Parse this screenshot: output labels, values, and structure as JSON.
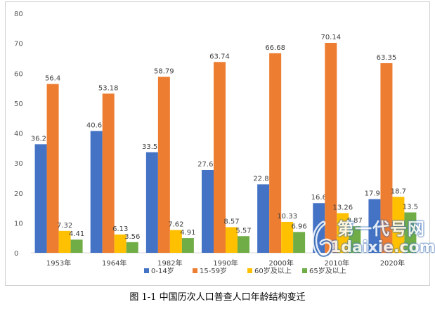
{
  "caption": "图 1-1 中国历次人口普查人口年龄结构变迁",
  "watermark": {
    "line1": "第一代号网",
    "line2": "1daixie.com"
  },
  "chart_data": {
    "type": "bar",
    "categories": [
      "1953年",
      "1964年",
      "1982年",
      "1990年",
      "2000年",
      "2010年",
      "2020年"
    ],
    "series": [
      {
        "name": "0-14岁",
        "color": "#4472c4",
        "values": [
          36.28,
          40.69,
          33.59,
          27.69,
          22.89,
          16.6,
          17.95
        ]
      },
      {
        "name": "15-59岁",
        "color": "#ed7d31",
        "values": [
          56.4,
          53.18,
          58.79,
          63.74,
          66.68,
          70.14,
          63.35
        ]
      },
      {
        "name": "60岁及以上",
        "color": "#ffc000",
        "values": [
          7.32,
          6.13,
          7.62,
          8.57,
          10.33,
          13.26,
          18.7
        ]
      },
      {
        "name": "65岁及以上",
        "color": "#70ad47",
        "values": [
          4.41,
          3.56,
          4.91,
          5.57,
          6.96,
          8.87,
          13.5
        ]
      }
    ],
    "data_labels": [
      [
        "36.28",
        "40.69",
        "33.59",
        "27.69",
        "22.89",
        "16.6",
        "17.95"
      ],
      [
        "56.4",
        "53.18",
        "58.79",
        "63.74",
        "66.68",
        "70.14",
        "63.35"
      ],
      [
        "7.32",
        "6.13",
        "7.62",
        "8.57",
        "10.33",
        "13.26",
        "18.7"
      ],
      [
        "4.41",
        "3.56",
        "4.91",
        "5.57",
        "6.96",
        "8.87",
        "13.5"
      ]
    ],
    "yticks": [
      "0",
      "10",
      "20",
      "30",
      "40",
      "50",
      "60",
      "70",
      "80"
    ],
    "ylim": [
      0,
      80
    ],
    "grid": false,
    "legend_position": "bottom"
  }
}
